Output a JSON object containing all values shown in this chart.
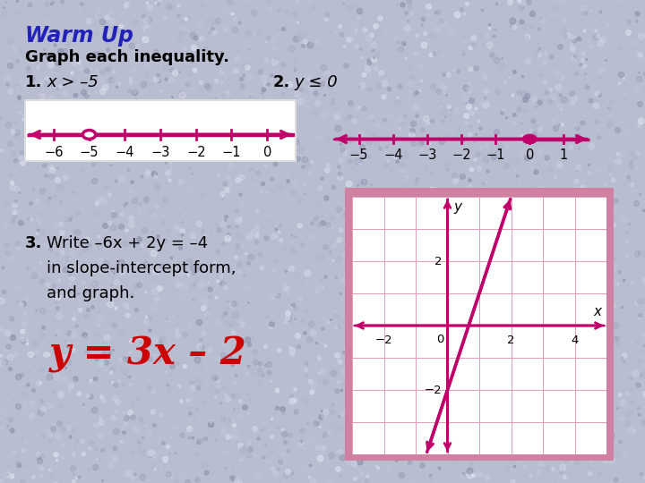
{
  "bg_color": "#b8bdd0",
  "bg_speckle_colors": [
    "#c8cce0",
    "#a8adc4",
    "#d0d4e8",
    "#9899b4",
    "#c0c4d8",
    "#b0b8cc",
    "#e0e4f0",
    "#8890a8"
  ],
  "title": "Warm Up",
  "subtitle": "Graph each inequality.",
  "label1_num": "1.",
  "label1_expr": "x > –5",
  "label2_num": "2.",
  "label2_expr": "y ≤ 0",
  "label3_num": "3.",
  "label3_line1": "Write –6x + 2y = –4",
  "label3_line2": "in slope-intercept form,",
  "label3_line3": "and graph.",
  "answer": "y = 3x – 2",
  "nl1_ticks": [
    -6,
    -5,
    -4,
    -3,
    -2,
    -1,
    0
  ],
  "nl1_open_circle": -5,
  "nl2_ticks": [
    -5,
    -4,
    -3,
    -2,
    -1,
    0,
    1
  ],
  "nl2_closed_circle": 0,
  "magenta": "#c0006a",
  "red_answer": "#cc0000",
  "blue_title": "#2222bb",
  "graph_xlim": [
    -3,
    5
  ],
  "graph_ylim": [
    -4,
    4
  ],
  "graph_xticks_labeled": [
    -2,
    0,
    2,
    4
  ],
  "graph_yticks_labeled": [
    -2,
    2
  ],
  "line_slope": 3,
  "line_yintercept": -2
}
